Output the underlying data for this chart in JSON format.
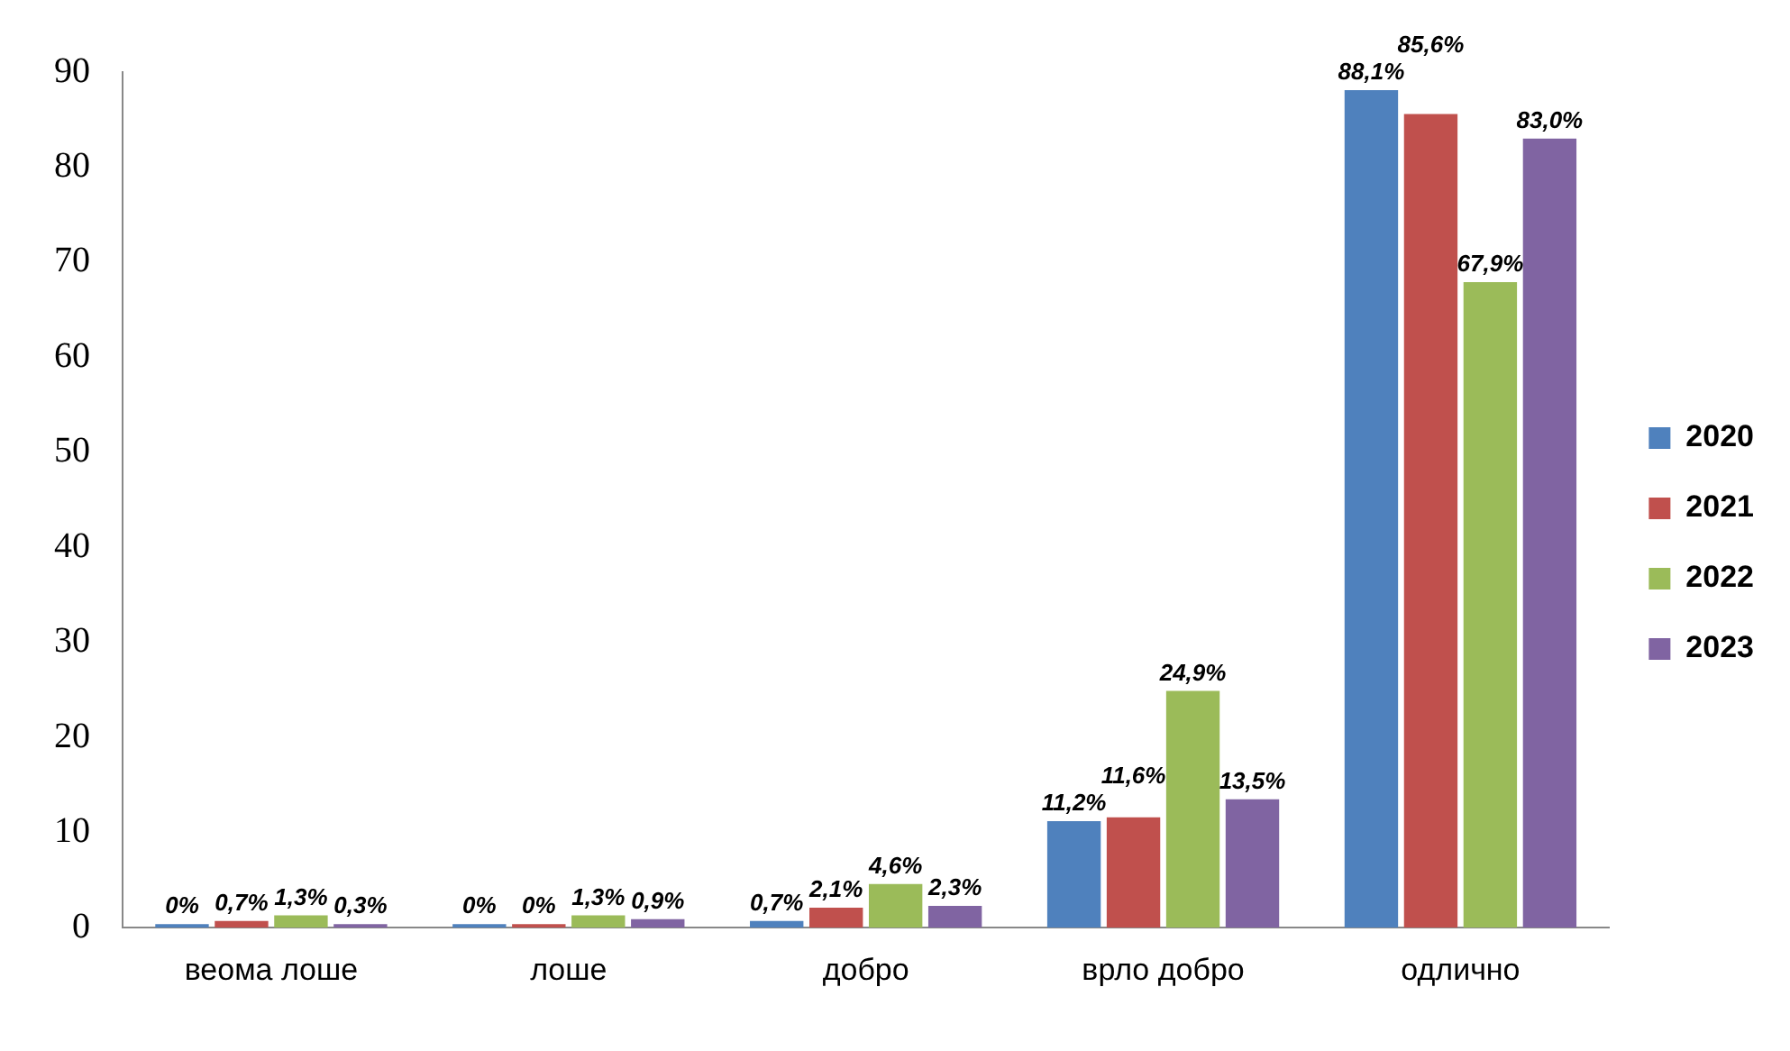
{
  "chart_data": {
    "type": "bar",
    "categories": [
      "веома лоше",
      "лоше",
      "добро",
      "врло добро",
      "одлично"
    ],
    "series": [
      {
        "name": "2020",
        "color": "#4f81bd",
        "values": [
          0,
          0,
          0.7,
          11.2,
          88.1
        ],
        "value_labels": [
          "0%",
          "0%",
          "0,7%",
          "11,2%",
          "88,1%"
        ]
      },
      {
        "name": "2021",
        "color": "#c0504d",
        "values": [
          0.7,
          0,
          2.1,
          11.6,
          85.6
        ],
        "value_labels": [
          "0,7%",
          "0%",
          "2,1%",
          "11,6%",
          "85,6%"
        ]
      },
      {
        "name": "2022",
        "color": "#9bbb59",
        "values": [
          1.3,
          1.3,
          4.6,
          24.9,
          67.9
        ],
        "value_labels": [
          "1,3%",
          "1,3%",
          "4,6%",
          "24,9%",
          "67,9%"
        ]
      },
      {
        "name": "2023",
        "color": "#8064a2",
        "values": [
          0.3,
          0.9,
          2.3,
          13.5,
          83.0
        ],
        "value_labels": [
          "0,3%",
          "0,9%",
          "2,3%",
          "13,5%",
          "83,0%"
        ]
      }
    ],
    "ylim": [
      0,
      90
    ],
    "yticks": [
      0,
      10,
      20,
      30,
      40,
      50,
      60,
      70,
      80,
      90
    ],
    "grid": false,
    "legend": "right"
  }
}
